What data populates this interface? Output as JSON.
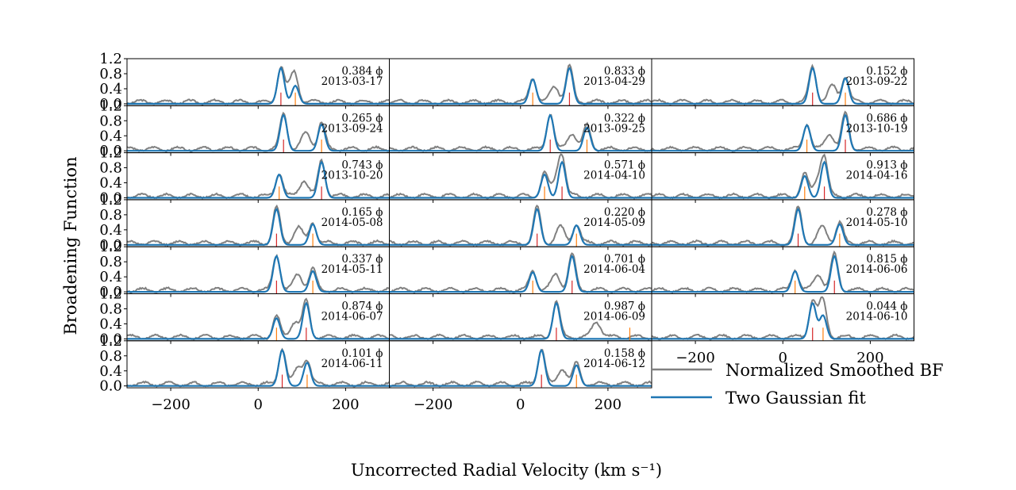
{
  "chart_data": {
    "type": "line",
    "xlabel": "Uncorrected Radial Velocity (km s⁻¹)",
    "ylabel": "Broadening Function",
    "xlim": [
      -300,
      300
    ],
    "ylim": [
      -0.05,
      1.2
    ],
    "x_ticks": [
      -200,
      0,
      200
    ],
    "x_tick_labels": [
      "−200",
      "0",
      "200"
    ],
    "y_ticks": [
      0.0,
      0.4,
      0.8,
      1.2
    ],
    "y_tick_labels": [
      "0.0",
      "0.4",
      "0.8",
      "1.2"
    ],
    "grid": false,
    "legend": {
      "placement": "lower-right",
      "entries": [
        {
          "label": "Normalized Smoothed BF",
          "color": "#808080"
        },
        {
          "label": "Two Gaussian fit",
          "color": "#1f77b4"
        }
      ]
    },
    "colors": {
      "bf": "#808080",
      "fit": "#1f77b4",
      "primary_marker": "#d62728",
      "secondary_marker": "#ff7f0e"
    },
    "panels": [
      {
        "phase": "0.384",
        "date": "2013-03-17",
        "p1": 52,
        "a1": 0.95,
        "p2": 85,
        "a2": 0.48
      },
      {
        "phase": "0.833",
        "date": "2013-04-29",
        "p1": 112,
        "a1": 0.95,
        "p2": 28,
        "a2": 0.65
      },
      {
        "phase": "0.152",
        "date": "2013-09-22",
        "p1": 68,
        "a1": 0.95,
        "p2": 143,
        "a2": 0.68
      },
      {
        "phase": "0.265",
        "date": "2013-09-24",
        "p1": 58,
        "a1": 0.95,
        "p2": 145,
        "a2": 0.7
      },
      {
        "phase": "0.322",
        "date": "2013-09-25",
        "p1": 68,
        "a1": 0.95,
        "p2": 152,
        "a2": 0.62
      },
      {
        "phase": "0.686",
        "date": "2013-10-19",
        "p1": 143,
        "a1": 0.95,
        "p2": 55,
        "a2": 0.68
      },
      {
        "phase": "0.743",
        "date": "2013-10-20",
        "p1": 145,
        "a1": 0.95,
        "p2": 48,
        "a2": 0.62
      },
      {
        "phase": "0.571",
        "date": "2014-04-10",
        "p1": 95,
        "a1": 0.95,
        "p2": 55,
        "a2": 0.62
      },
      {
        "phase": "0.913",
        "date": "2014-04-16",
        "p1": 95,
        "a1": 0.95,
        "p2": 50,
        "a2": 0.58
      },
      {
        "phase": "0.165",
        "date": "2014-05-08",
        "p1": 42,
        "a1": 0.95,
        "p2": 125,
        "a2": 0.55
      },
      {
        "phase": "0.220",
        "date": "2014-05-09",
        "p1": 38,
        "a1": 0.95,
        "p2": 128,
        "a2": 0.52
      },
      {
        "phase": "0.278",
        "date": "2014-05-10",
        "p1": 35,
        "a1": 0.95,
        "p2": 130,
        "a2": 0.55
      },
      {
        "phase": "0.337",
        "date": "2014-05-11",
        "p1": 42,
        "a1": 0.95,
        "p2": 125,
        "a2": 0.55
      },
      {
        "phase": "0.701",
        "date": "2014-06-04",
        "p1": 118,
        "a1": 0.95,
        "p2": 28,
        "a2": 0.52
      },
      {
        "phase": "0.815",
        "date": "2014-06-06",
        "p1": 118,
        "a1": 0.95,
        "p2": 28,
        "a2": 0.55
      },
      {
        "phase": "0.874",
        "date": "2014-06-07",
        "p1": 110,
        "a1": 0.95,
        "p2": 42,
        "a2": 0.55
      },
      {
        "phase": "0.987",
        "date": "2014-06-09",
        "p1": 82,
        "a1": 0.95,
        "p2": 250,
        "a2": 0.0
      },
      {
        "phase": "0.044",
        "date": "2014-06-10",
        "p1": 68,
        "a1": 0.95,
        "p2": 92,
        "a2": 0.62
      },
      {
        "phase": "0.101",
        "date": "2014-06-11",
        "p1": 55,
        "a1": 0.95,
        "p2": 112,
        "a2": 0.62
      },
      {
        "phase": "0.158",
        "date": "2014-06-12",
        "p1": 48,
        "a1": 0.95,
        "p2": 128,
        "a2": 0.55
      }
    ]
  }
}
